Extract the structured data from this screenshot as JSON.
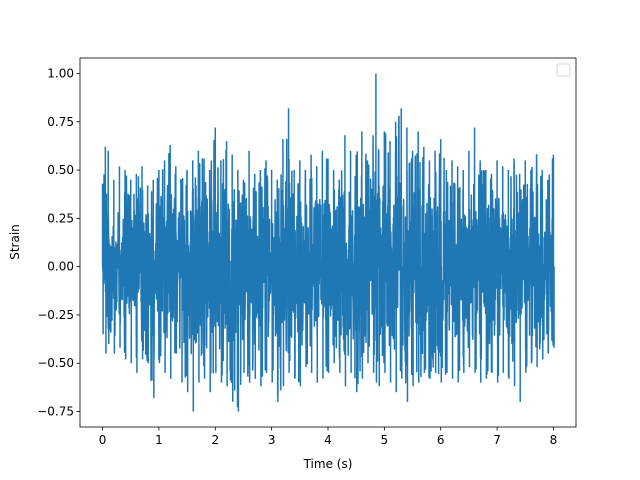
{
  "chart_data": {
    "type": "line",
    "title": "",
    "xlabel": "Time (s)",
    "ylabel": "Strain",
    "xlim": [
      -0.4,
      8.4
    ],
    "ylim": [
      -0.83,
      1.08
    ],
    "xticks": [
      0,
      1,
      2,
      3,
      4,
      5,
      6,
      7,
      8
    ],
    "xtick_labels": [
      "0",
      "1",
      "2",
      "3",
      "4",
      "5",
      "6",
      "7",
      "8"
    ],
    "yticks": [
      -0.75,
      -0.5,
      -0.25,
      0.0,
      0.25,
      0.5,
      0.75,
      1.0
    ],
    "ytick_labels": [
      "−0.75",
      "−0.50",
      "−0.25",
      "0.00",
      "0.25",
      "0.50",
      "0.75",
      "1.00"
    ],
    "grid": false,
    "legend": {
      "placement": "top-right",
      "entries": []
    },
    "series": [
      {
        "color": "#1f77b4",
        "x_start": 0.0,
        "x_end": 8.0,
        "envelope": {
          "x": [
            0.0,
            0.05,
            0.1,
            0.2,
            0.3,
            0.4,
            0.5,
            0.6,
            0.7,
            0.8,
            0.9,
            1.0,
            1.1,
            1.2,
            1.3,
            1.4,
            1.5,
            1.6,
            1.7,
            1.8,
            1.9,
            2.0,
            2.1,
            2.2,
            2.3,
            2.4,
            2.5,
            2.6,
            2.7,
            2.8,
            2.9,
            3.0,
            3.1,
            3.2,
            3.3,
            3.4,
            3.5,
            3.6,
            3.7,
            3.8,
            3.9,
            4.0,
            4.1,
            4.2,
            4.3,
            4.4,
            4.5,
            4.6,
            4.7,
            4.8,
            4.85,
            4.9,
            5.0,
            5.1,
            5.2,
            5.3,
            5.4,
            5.5,
            5.6,
            5.7,
            5.8,
            5.9,
            6.0,
            6.1,
            6.2,
            6.3,
            6.4,
            6.5,
            6.6,
            6.7,
            6.8,
            6.9,
            7.0,
            7.1,
            7.2,
            7.3,
            7.4,
            7.5,
            7.6,
            7.7,
            7.8,
            7.9,
            8.0
          ],
          "upper": [
            0.43,
            0.62,
            0.6,
            0.45,
            0.52,
            0.5,
            0.45,
            0.48,
            0.52,
            0.42,
            0.45,
            0.5,
            0.55,
            0.63,
            0.52,
            0.45,
            0.5,
            0.55,
            0.6,
            0.56,
            0.5,
            0.72,
            0.55,
            0.65,
            0.58,
            0.5,
            0.45,
            0.6,
            0.48,
            0.5,
            0.55,
            0.5,
            0.45,
            0.66,
            0.82,
            0.5,
            0.55,
            0.5,
            0.58,
            0.52,
            0.6,
            0.56,
            0.5,
            0.45,
            0.68,
            0.6,
            0.58,
            0.7,
            0.55,
            0.68,
            1.0,
            0.6,
            0.7,
            0.65,
            0.75,
            0.82,
            0.72,
            0.6,
            0.7,
            0.62,
            0.55,
            0.6,
            0.66,
            0.5,
            0.55,
            0.52,
            0.5,
            0.6,
            0.72,
            0.55,
            0.5,
            0.48,
            0.55,
            0.52,
            0.5,
            0.56,
            0.48,
            0.55,
            0.5,
            0.58,
            0.5,
            0.45,
            0.58
          ],
          "lower": [
            -0.35,
            -0.45,
            -0.4,
            -0.45,
            -0.42,
            -0.48,
            -0.5,
            -0.55,
            -0.48,
            -0.5,
            -0.68,
            -0.5,
            -0.55,
            -0.58,
            -0.45,
            -0.6,
            -0.65,
            -0.75,
            -0.6,
            -0.58,
            -0.65,
            -0.55,
            -0.6,
            -0.62,
            -0.7,
            -0.75,
            -0.55,
            -0.6,
            -0.58,
            -0.62,
            -0.55,
            -0.6,
            -0.7,
            -0.62,
            -0.55,
            -0.58,
            -0.62,
            -0.52,
            -0.55,
            -0.6,
            -0.58,
            -0.55,
            -0.5,
            -0.55,
            -0.62,
            -0.55,
            -0.65,
            -0.58,
            -0.5,
            -0.55,
            -0.6,
            -0.62,
            -0.55,
            -0.6,
            -0.65,
            -0.58,
            -0.7,
            -0.62,
            -0.6,
            -0.55,
            -0.58,
            -0.55,
            -0.6,
            -0.55,
            -0.58,
            -0.6,
            -0.55,
            -0.52,
            -0.55,
            -0.6,
            -0.58,
            -0.55,
            -0.6,
            -0.55,
            -0.58,
            -0.62,
            -0.7,
            -0.55,
            -0.5,
            -0.52,
            -0.48,
            -0.45,
            -0.42
          ]
        },
        "core_quantile": 0.3,
        "extreme_fraction": 0.055
      }
    ]
  }
}
